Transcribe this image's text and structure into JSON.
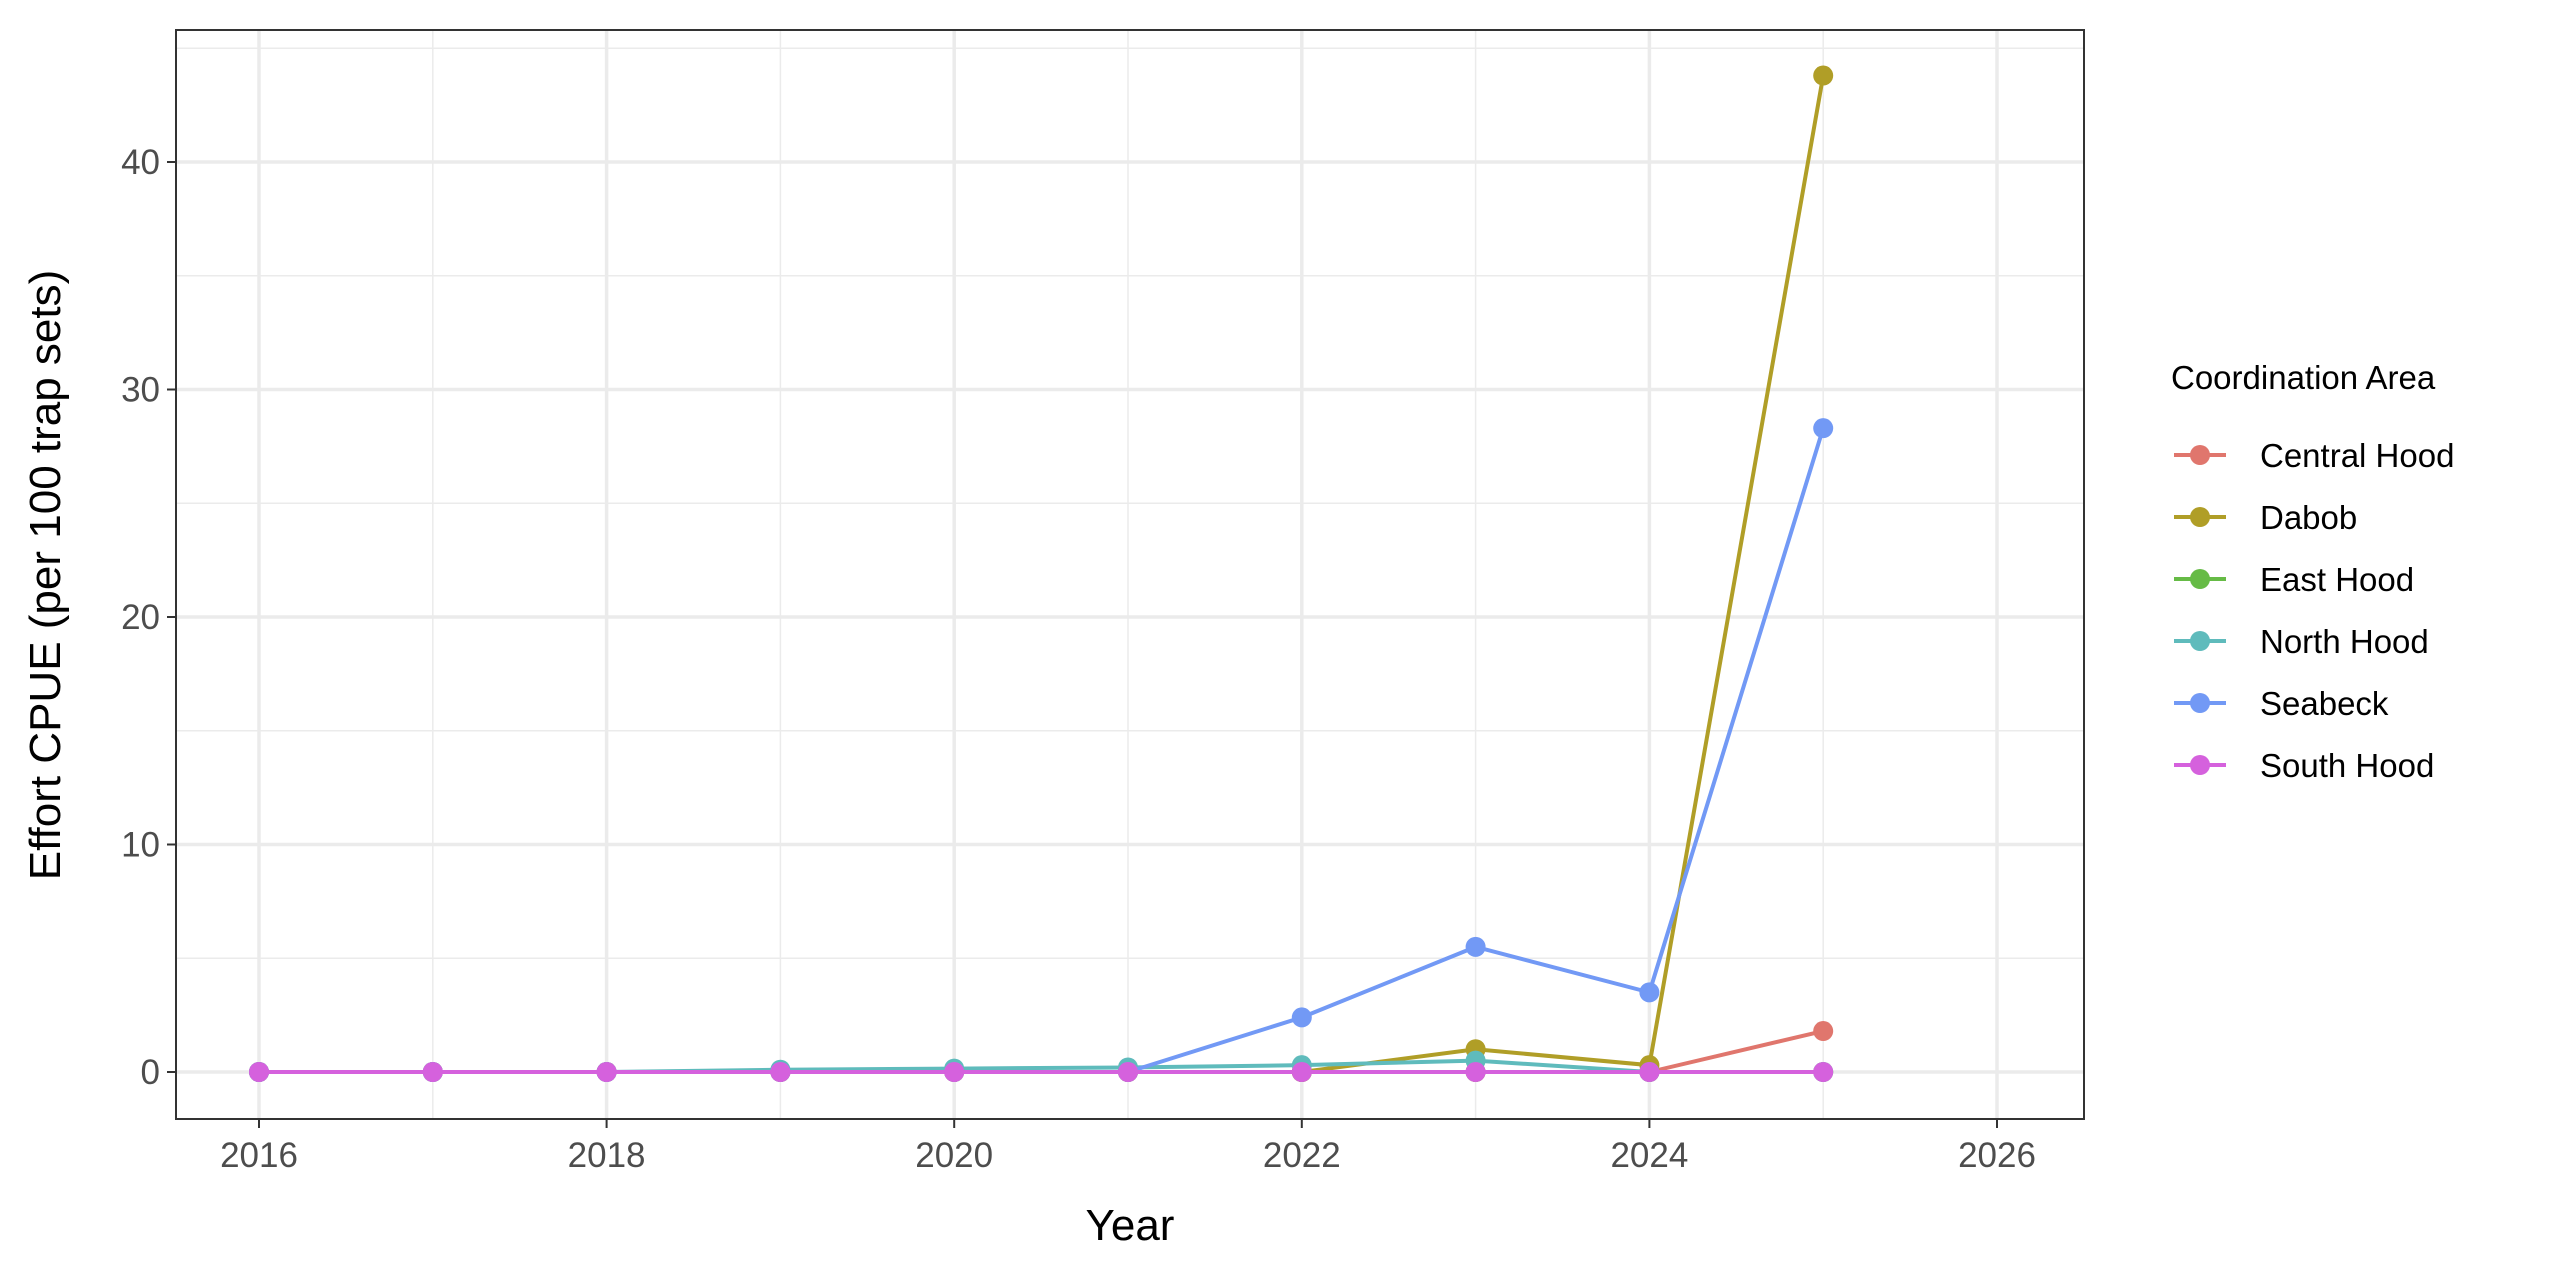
{
  "chart_data": {
    "type": "line",
    "title": "",
    "xlabel": "Year",
    "ylabel": "Effort CPUE (per 100 trap sets)",
    "xlim": [
      2015.5,
      2026.5
    ],
    "ylim": [
      -2.2,
      46
    ],
    "x_ticks": [
      2016,
      2018,
      2020,
      2022,
      2024,
      2026
    ],
    "y_ticks": [
      0,
      10,
      20,
      30,
      40
    ],
    "grid": true,
    "legend": {
      "title": "Coordination Area",
      "position": "right"
    },
    "x": [
      2016,
      2017,
      2018,
      2019,
      2020,
      2021,
      2022,
      2023,
      2024,
      2025
    ],
    "series": [
      {
        "name": "Central Hood",
        "color": "#E0766D",
        "values": [
          0,
          0,
          0,
          0,
          0,
          0,
          0,
          0,
          0,
          1.8
        ]
      },
      {
        "name": "Dabob",
        "color": "#B09E27",
        "values": [
          0,
          0,
          0,
          0,
          0,
          0,
          0,
          1.0,
          0.3,
          43.8
        ]
      },
      {
        "name": "East Hood",
        "color": "#66BB46",
        "values": [
          0,
          0,
          0,
          0,
          0,
          0,
          0,
          0,
          0,
          0
        ]
      },
      {
        "name": "North Hood",
        "color": "#5FBBBC",
        "values": [
          0,
          0,
          0,
          0.1,
          0.15,
          0.2,
          0.3,
          0.5,
          0,
          0
        ]
      },
      {
        "name": "Seabeck",
        "color": "#7299F5",
        "values": [
          0,
          0,
          0,
          0,
          0,
          0,
          2.4,
          5.5,
          3.5,
          28.3
        ]
      },
      {
        "name": "South Hood",
        "color": "#D561DD",
        "values": [
          0,
          0,
          0,
          0,
          0,
          0,
          0,
          0,
          0,
          0
        ]
      }
    ]
  }
}
